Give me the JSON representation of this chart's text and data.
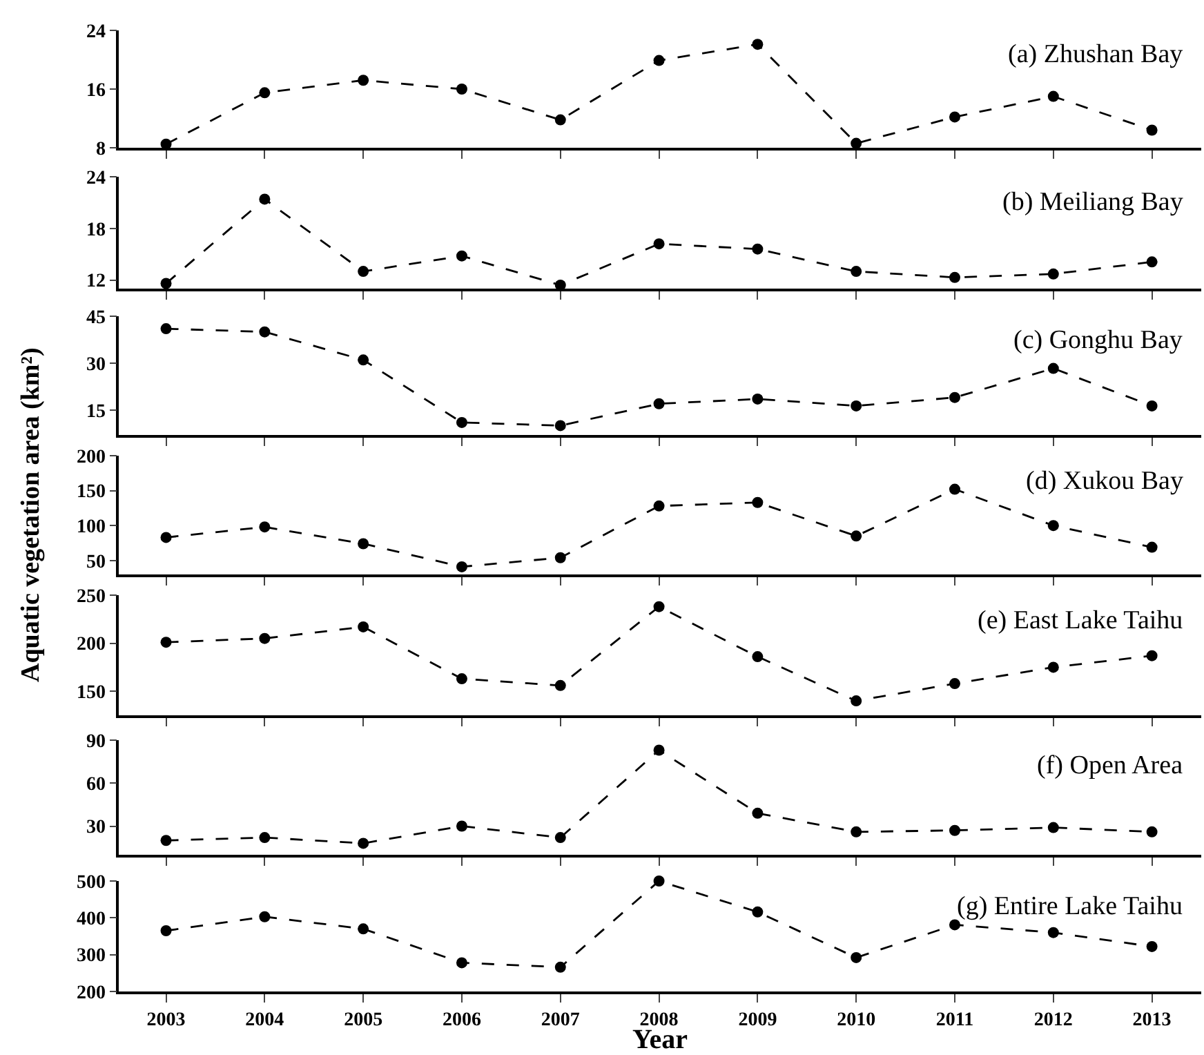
{
  "chart_data": [
    {
      "type": "line",
      "title": "(a) Zhushan Bay",
      "categories": [
        "2003",
        "2004",
        "2005",
        "2006",
        "2007",
        "2008",
        "2009",
        "2010",
        "2011",
        "2012",
        "2013"
      ],
      "series": [
        {
          "color": "#000000",
          "values": [
            8.5,
            15.5,
            17.2,
            16.0,
            11.8,
            19.9,
            22.1,
            8.6,
            12.2,
            15.0,
            10.4
          ]
        }
      ],
      "ylim": [
        8,
        24
      ],
      "yticks": [
        8,
        16,
        24
      ],
      "marker": "circle",
      "line_style": "dashed",
      "tick_labels": "y"
    },
    {
      "type": "line",
      "title": "(b) Meiliang Bay",
      "categories": [
        "2003",
        "2004",
        "2005",
        "2006",
        "2007",
        "2008",
        "2009",
        "2010",
        "2011",
        "2012",
        "2013"
      ],
      "series": [
        {
          "color": "#000000",
          "values": [
            11.6,
            21.4,
            13.0,
            14.8,
            11.4,
            16.2,
            15.6,
            13.0,
            12.3,
            12.7,
            14.1
          ]
        }
      ],
      "ylim": [
        11,
        24
      ],
      "yticks": [
        12,
        18,
        24
      ],
      "marker": "circle",
      "line_style": "dashed",
      "tick_labels": "y"
    },
    {
      "type": "line",
      "title": "(c) Gonghu Bay",
      "categories": [
        "2003",
        "2004",
        "2005",
        "2006",
        "2007",
        "2008",
        "2009",
        "2010",
        "2011",
        "2012",
        "2013"
      ],
      "series": [
        {
          "color": "#000000",
          "values": [
            41,
            40,
            31,
            11,
            10,
            17,
            18.5,
            16.3,
            19,
            28.3,
            16.3
          ]
        }
      ],
      "ylim": [
        7,
        45
      ],
      "yticks": [
        15,
        30,
        45
      ],
      "marker": "circle",
      "line_style": "dashed",
      "tick_labels": "y"
    },
    {
      "type": "line",
      "title": "(d) Xukou Bay",
      "ylabel": "Aquatic vegetation area (km²)",
      "categories": [
        "2003",
        "2004",
        "2005",
        "2006",
        "2007",
        "2008",
        "2009",
        "2010",
        "2011",
        "2012",
        "2013"
      ],
      "series": [
        {
          "color": "#000000",
          "values": [
            83,
            98,
            74,
            41,
            54,
            128,
            133,
            85,
            152,
            100,
            69
          ]
        }
      ],
      "ylim": [
        30,
        200
      ],
      "yticks": [
        50,
        100,
        150,
        200
      ],
      "marker": "circle",
      "line_style": "dashed",
      "tick_labels": "y"
    },
    {
      "type": "line",
      "title": "(e) East Lake Taihu",
      "categories": [
        "2003",
        "2004",
        "2005",
        "2006",
        "2007",
        "2008",
        "2009",
        "2010",
        "2011",
        "2012",
        "2013"
      ],
      "series": [
        {
          "color": "#000000",
          "values": [
            201,
            205,
            217,
            163,
            156,
            238,
            186,
            140,
            158,
            175,
            187
          ]
        }
      ],
      "ylim": [
        125,
        250
      ],
      "yticks": [
        150,
        200,
        250
      ],
      "marker": "circle",
      "line_style": "dashed",
      "tick_labels": "y"
    },
    {
      "type": "line",
      "title": "(f) Open Area",
      "categories": [
        "2003",
        "2004",
        "2005",
        "2006",
        "2007",
        "2008",
        "2009",
        "2010",
        "2011",
        "2012",
        "2013"
      ],
      "series": [
        {
          "color": "#000000",
          "values": [
            20,
            22,
            18,
            30,
            22,
            83,
            39,
            26,
            27,
            29,
            26
          ]
        }
      ],
      "ylim": [
        10,
        90
      ],
      "yticks": [
        30,
        60,
        90
      ],
      "marker": "circle",
      "line_style": "dashed",
      "tick_labels": "y"
    },
    {
      "type": "line",
      "title": "(g) Entire Lake Taihu",
      "xlabel": "Year",
      "categories": [
        "2003",
        "2004",
        "2005",
        "2006",
        "2007",
        "2008",
        "2009",
        "2010",
        "2011",
        "2012",
        "2013"
      ],
      "series": [
        {
          "color": "#000000",
          "values": [
            365,
            403,
            370,
            278,
            266,
            500,
            416,
            292,
            381,
            360,
            322
          ]
        }
      ],
      "ylim": [
        200,
        500
      ],
      "yticks": [
        200,
        300,
        400,
        500
      ],
      "marker": "circle",
      "line_style": "dashed"
    }
  ]
}
